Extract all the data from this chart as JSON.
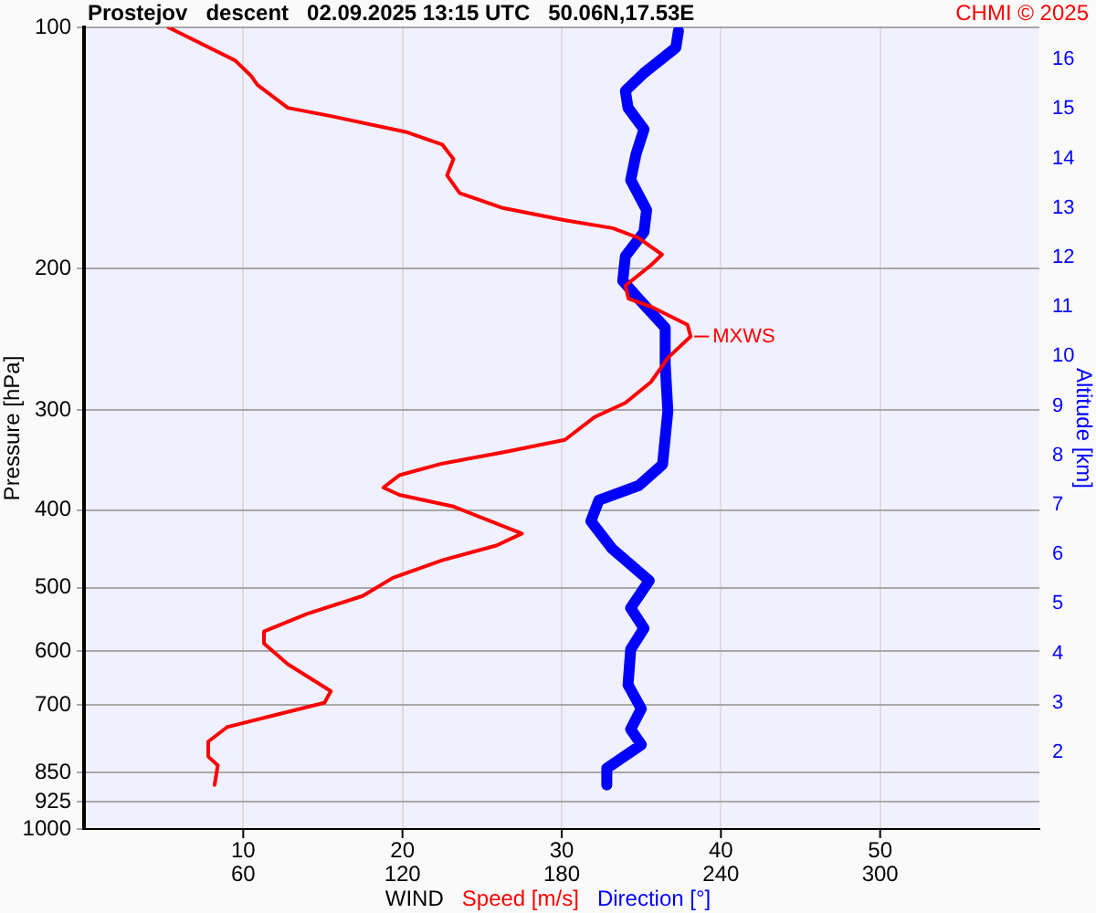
{
  "chart_data": {
    "type": "line",
    "title": "Prostejov   descent   02.09.2025 13:15 UTC   50.06N,17.53E",
    "xlabel": "WIND",
    "ylabel": "Pressure [hPa]",
    "y2label": "Altitude [km]",
    "annotations": [
      "CHMI © 2025",
      {
        "text": "MXWS",
        "x": 38.1,
        "y": 243
      }
    ],
    "log": "y",
    "grid": true,
    "legend": "bottom",
    "marker": "none",
    "line_style": "solid",
    "xlim": [
      0,
      60
    ],
    "xticks": [
      10,
      20,
      30,
      40,
      50
    ],
    "x2lim": [
      0,
      360
    ],
    "x2ticks": [
      60,
      120,
      180,
      240,
      300
    ],
    "ylim": [
      1000,
      100
    ],
    "yticks": [
      100,
      200,
      300,
      400,
      500,
      600,
      700,
      850,
      925,
      1000
    ],
    "y2lim": [
      0.45,
      16.65
    ],
    "y2ticks": [
      2,
      3,
      4,
      5,
      6,
      7,
      8,
      9,
      10,
      11,
      12,
      13,
      14,
      15,
      16
    ],
    "series": [
      {
        "name": "Speed [m/s]",
        "color": "#ff0000",
        "x": [
          5.3,
          9.5,
          10.5,
          10.9,
          12.8,
          15.5,
          20.2,
          22.5,
          23.2,
          22.8,
          23.6,
          26.3,
          30.2,
          33.2,
          34.8,
          36.3,
          35.6,
          34.0,
          34.2,
          35.6,
          37.9,
          38.1,
          36.7,
          35.6,
          34.0,
          32.1,
          30.2,
          26.3,
          22.5,
          19.8,
          18.8,
          19.8,
          23.2,
          27.5,
          25.9,
          22.5,
          19.4,
          17.5,
          14.0,
          11.3,
          11.3,
          12.8,
          15.5,
          15.1,
          12.1,
          9.0,
          7.8,
          7.8,
          8.4,
          8.2
        ],
        "values": [
          100,
          110,
          115,
          118,
          126,
          129,
          135,
          140,
          146,
          153,
          161,
          168,
          174,
          178,
          183,
          192,
          198,
          210,
          218,
          223,
          235,
          243,
          258,
          277,
          294,
          306,
          327,
          339,
          350,
          362,
          375,
          383,
          396,
          428,
          443,
          462,
          486,
          512,
          539,
          567,
          587,
          623,
          673,
          696,
          720,
          746,
          778,
          812,
          833,
          881
        ]
      },
      {
        "name": "Direction [°]",
        "color": "#0000ff",
        "axis": "x2",
        "x": [
          224,
          223,
          211,
          204,
          205,
          211,
          208,
          206,
          212,
          211,
          204,
          203,
          209,
          219,
          219,
          220,
          218,
          209,
          194,
          191,
          199,
          213,
          206,
          211,
          206,
          205,
          210,
          206,
          210,
          197,
          197
        ],
        "values": [
          101,
          106,
          114,
          120,
          126,
          134,
          144,
          155,
          169,
          180,
          193,
          207,
          218,
          237,
          263,
          301,
          351,
          373,
          389,
          413,
          447,
          490,
          530,
          562,
          597,
          661,
          708,
          751,
          785,
          840,
          881
        ]
      }
    ]
  }
}
